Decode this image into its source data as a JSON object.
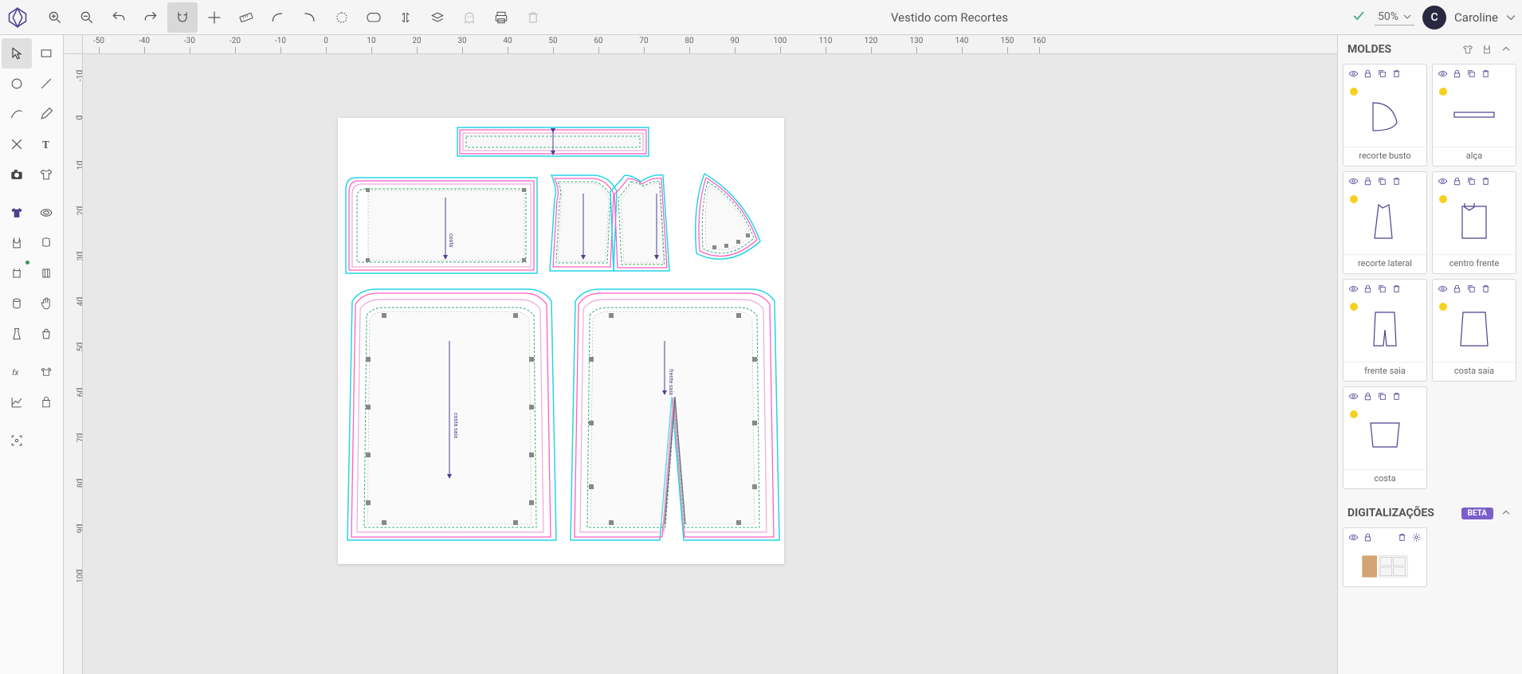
{
  "document": {
    "title": "Vestido com Recortes"
  },
  "zoom": {
    "value": "50%"
  },
  "user": {
    "initial": "C",
    "name": "Caroline"
  },
  "panels": {
    "molds": {
      "title": "MOLDES"
    },
    "digitizations": {
      "title": "DIGITALIZAÇÕES",
      "badge": "BETA"
    }
  },
  "molds": [
    {
      "label": "recorte busto"
    },
    {
      "label": "alça"
    },
    {
      "label": "recorte lateral"
    },
    {
      "label": "centro frente"
    },
    {
      "label": "frente saia"
    },
    {
      "label": "costa saia"
    },
    {
      "label": "costa"
    }
  ],
  "ruler_h": [
    {
      "v": "-50",
      "p": 20
    },
    {
      "v": "-40",
      "p": 77
    },
    {
      "v": "-30",
      "p": 134
    },
    {
      "v": "-20",
      "p": 191
    },
    {
      "v": "-10",
      "p": 248
    },
    {
      "v": "0",
      "p": 305
    },
    {
      "v": "10",
      "p": 362
    },
    {
      "v": "20",
      "p": 419
    },
    {
      "v": "30",
      "p": 476
    },
    {
      "v": "40",
      "p": 533
    },
    {
      "v": "50",
      "p": 590
    },
    {
      "v": "60",
      "p": 647
    },
    {
      "v": "70",
      "p": 704
    },
    {
      "v": "80",
      "p": 761
    },
    {
      "v": "90",
      "p": 818
    },
    {
      "v": "100",
      "p": 875
    },
    {
      "v": "110",
      "p": 932
    },
    {
      "v": "120",
      "p": 989
    },
    {
      "v": "130",
      "p": 1046
    },
    {
      "v": "140",
      "p": 1103
    },
    {
      "v": "150",
      "p": 1160
    },
    {
      "v": "160",
      "p": 1200
    }
  ],
  "ruler_v": [
    {
      "v": "-10",
      "p": 20
    },
    {
      "v": "0",
      "p": 77
    },
    {
      "v": "10",
      "p": 134
    },
    {
      "v": "20",
      "p": 191
    },
    {
      "v": "30",
      "p": 248
    },
    {
      "v": "40",
      "p": 305
    },
    {
      "v": "50",
      "p": 362
    },
    {
      "v": "60",
      "p": 419
    },
    {
      "v": "70",
      "p": 476
    },
    {
      "v": "80",
      "p": 533
    },
    {
      "v": "90",
      "p": 590
    },
    {
      "v": "100",
      "p": 647
    }
  ],
  "colors": {
    "stroke_outer": "#23d5e8",
    "stroke_mid": "#ff5ec4",
    "stroke_inner": "#f0a8d8",
    "stroke_seam": "#3aa876",
    "primary": "#4a4090"
  },
  "pieces": {
    "strap": {
      "label": "alça"
    },
    "costa": {
      "label": "costa"
    },
    "lat1": {
      "label": "recorte lateral"
    },
    "front": {
      "label": "centro frente"
    },
    "bust": {
      "label": "recorte busto"
    },
    "costa_saia": {
      "label": "costa saia"
    },
    "frente_saia": {
      "label": "frente saia"
    }
  }
}
